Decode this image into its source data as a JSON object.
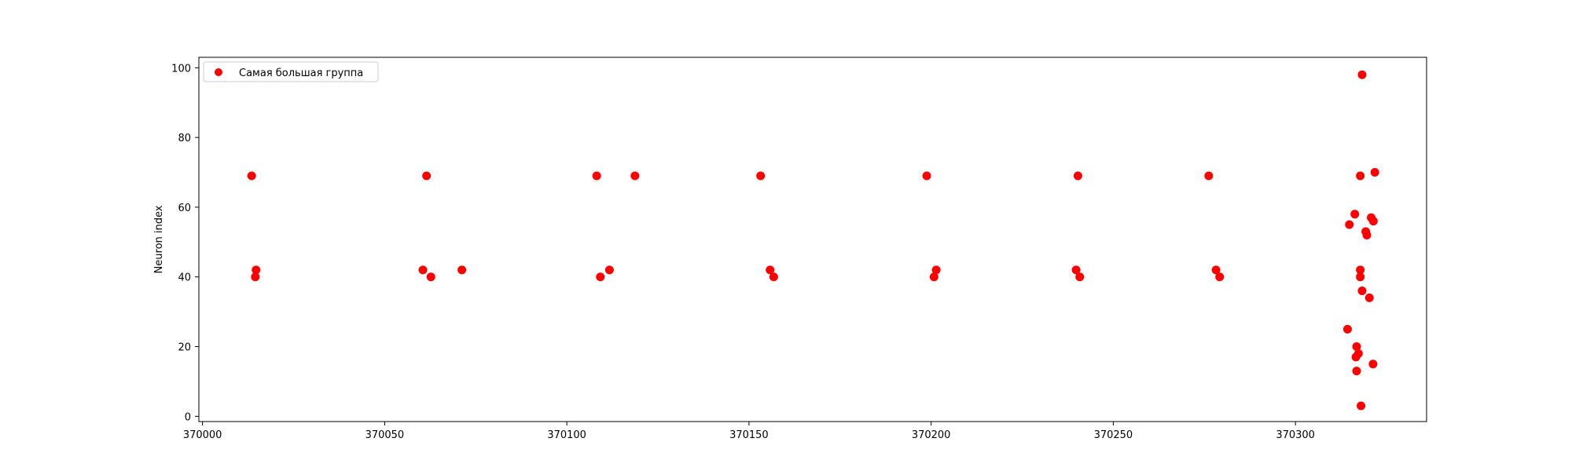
{
  "chart_data": {
    "type": "scatter",
    "title": "",
    "xlabel": "",
    "ylabel": "Neuron index",
    "xlim": [
      369999,
      370336
    ],
    "ylim": [
      -1.5,
      103
    ],
    "xticks": [
      370000,
      370050,
      370100,
      370150,
      370200,
      370250,
      370300
    ],
    "yticks": [
      0,
      20,
      40,
      60,
      80,
      100
    ],
    "grid": false,
    "legend_position": "top-left",
    "series": [
      {
        "name": "Самая большая группа",
        "color": "#ff0000",
        "points": [
          [
            370013.5,
            69
          ],
          [
            370014.7,
            42
          ],
          [
            370014.5,
            40
          ],
          [
            370061.5,
            69
          ],
          [
            370060.5,
            42
          ],
          [
            370062.7,
            40
          ],
          [
            370071.2,
            42
          ],
          [
            370108.2,
            69
          ],
          [
            370109.2,
            40
          ],
          [
            370111.7,
            42
          ],
          [
            370118.7,
            69
          ],
          [
            370153.2,
            69
          ],
          [
            370155.8,
            42
          ],
          [
            370156.8,
            40
          ],
          [
            370198.8,
            69
          ],
          [
            370200.8,
            40
          ],
          [
            370201.4,
            42
          ],
          [
            370240.3,
            69
          ],
          [
            370239.8,
            42
          ],
          [
            370240.8,
            40
          ],
          [
            370276.2,
            69
          ],
          [
            370278.2,
            42
          ],
          [
            370279.2,
            40
          ],
          [
            370318.3,
            98
          ],
          [
            370317.8,
            69
          ],
          [
            370321.8,
            70
          ],
          [
            370316.3,
            58
          ],
          [
            370314.8,
            55
          ],
          [
            370320.8,
            57
          ],
          [
            370321.4,
            56
          ],
          [
            370319.3,
            53
          ],
          [
            370319.6,
            52
          ],
          [
            370317.8,
            42
          ],
          [
            370317.8,
            40
          ],
          [
            370318.3,
            36
          ],
          [
            370320.3,
            34
          ],
          [
            370314.3,
            25
          ],
          [
            370316.8,
            20
          ],
          [
            370317.3,
            18
          ],
          [
            370316.6,
            17
          ],
          [
            370321.3,
            15
          ],
          [
            370316.8,
            13
          ],
          [
            370318.0,
            3
          ]
        ]
      }
    ]
  }
}
